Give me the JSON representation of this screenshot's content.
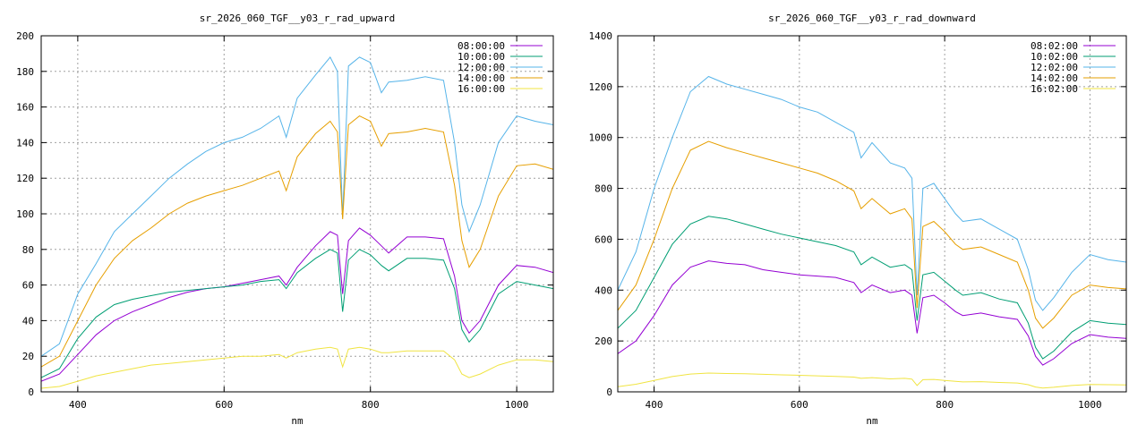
{
  "chart_data": [
    {
      "type": "line",
      "title": "sr_2026_060_TGF__y03_r_rad_upward",
      "xlabel": "nm",
      "ylabel": "",
      "xlim": [
        350,
        1050
      ],
      "ylim": [
        0,
        200
      ],
      "xticks": [
        400,
        600,
        800,
        1000
      ],
      "yticks": [
        0,
        20,
        40,
        60,
        80,
        100,
        120,
        140,
        160,
        180,
        200
      ],
      "grid": true,
      "legend": "top-right",
      "x": [
        350,
        375,
        400,
        425,
        450,
        475,
        500,
        525,
        550,
        575,
        600,
        625,
        650,
        675,
        685,
        700,
        725,
        745,
        755,
        762,
        770,
        785,
        800,
        815,
        825,
        850,
        875,
        900,
        915,
        925,
        935,
        950,
        975,
        1000,
        1025,
        1050
      ],
      "series": [
        {
          "name": "08:00:00",
          "color": "#9400d3",
          "values": [
            6,
            10,
            21,
            32,
            40,
            45,
            49,
            53,
            56,
            58,
            59,
            61,
            63,
            65,
            60,
            70,
            82,
            90,
            88,
            55,
            85,
            92,
            88,
            82,
            78,
            87,
            87,
            86,
            65,
            40,
            33,
            40,
            60,
            71,
            70,
            67
          ]
        },
        {
          "name": "10:00:00",
          "color": "#009e73",
          "values": [
            8,
            13,
            30,
            42,
            49,
            52,
            54,
            56,
            57,
            58,
            59,
            60,
            62,
            63,
            58,
            67,
            75,
            80,
            78,
            45,
            74,
            80,
            77,
            71,
            68,
            75,
            75,
            74,
            58,
            35,
            28,
            35,
            55,
            62,
            60,
            58
          ]
        },
        {
          "name": "12:00:00",
          "color": "#56b4e9",
          "values": [
            20,
            27,
            55,
            72,
            90,
            100,
            110,
            120,
            128,
            135,
            140,
            143,
            148,
            155,
            143,
            165,
            178,
            188,
            180,
            98,
            183,
            188,
            185,
            168,
            174,
            175,
            177,
            175,
            140,
            105,
            90,
            105,
            140,
            155,
            152,
            150
          ]
        },
        {
          "name": "14:00:00",
          "color": "#e69f00",
          "values": [
            14,
            20,
            40,
            60,
            75,
            85,
            92,
            100,
            106,
            110,
            113,
            116,
            120,
            124,
            113,
            132,
            145,
            152,
            146,
            97,
            150,
            155,
            152,
            138,
            145,
            146,
            148,
            146,
            116,
            85,
            70,
            80,
            110,
            127,
            128,
            125
          ]
        },
        {
          "name": "16:00:00",
          "color": "#f0e442",
          "values": [
            2,
            3,
            6,
            9,
            11,
            13,
            15,
            16,
            17,
            18,
            19,
            20,
            20,
            21,
            19,
            22,
            24,
            25,
            24,
            14,
            24,
            25,
            24,
            22,
            22,
            23,
            23,
            23,
            18,
            10,
            8,
            10,
            15,
            18,
            18,
            17
          ]
        }
      ]
    },
    {
      "type": "line",
      "title": "sr_2026_060_TGF__y03_r_rad_downward",
      "xlabel": "nm",
      "ylabel": "",
      "xlim": [
        350,
        1050
      ],
      "ylim": [
        0,
        1400
      ],
      "xticks": [
        400,
        600,
        800,
        1000
      ],
      "yticks": [
        0,
        200,
        400,
        600,
        800,
        1000,
        1200,
        1400
      ],
      "grid": true,
      "legend": "top-right",
      "x": [
        350,
        375,
        400,
        425,
        450,
        475,
        500,
        525,
        550,
        575,
        600,
        625,
        650,
        675,
        685,
        700,
        725,
        745,
        755,
        762,
        770,
        785,
        800,
        815,
        825,
        850,
        875,
        900,
        915,
        925,
        935,
        950,
        975,
        1000,
        1025,
        1050
      ],
      "series": [
        {
          "name": "08:02:00",
          "color": "#9400d3",
          "values": [
            150,
            200,
            300,
            420,
            490,
            515,
            505,
            500,
            480,
            470,
            460,
            455,
            450,
            430,
            390,
            420,
            390,
            400,
            380,
            230,
            370,
            380,
            350,
            315,
            300,
            310,
            295,
            285,
            220,
            140,
            105,
            130,
            190,
            225,
            215,
            210
          ]
        },
        {
          "name": "10:02:00",
          "color": "#009e73",
          "values": [
            250,
            320,
            450,
            580,
            660,
            690,
            680,
            660,
            640,
            620,
            605,
            590,
            575,
            550,
            500,
            530,
            490,
            500,
            480,
            280,
            460,
            470,
            435,
            400,
            380,
            390,
            365,
            350,
            270,
            175,
            130,
            160,
            235,
            280,
            270,
            265
          ]
        },
        {
          "name": "12:02:00",
          "color": "#56b4e9",
          "values": [
            400,
            550,
            800,
            1000,
            1180,
            1240,
            1210,
            1190,
            1170,
            1150,
            1120,
            1100,
            1060,
            1020,
            920,
            980,
            900,
            880,
            840,
            380,
            800,
            820,
            760,
            700,
            670,
            680,
            640,
            600,
            480,
            360,
            320,
            370,
            470,
            540,
            520,
            510
          ]
        },
        {
          "name": "14:02:00",
          "color": "#e69f00",
          "values": [
            320,
            420,
            600,
            800,
            950,
            985,
            960,
            940,
            920,
            900,
            880,
            860,
            830,
            790,
            720,
            760,
            700,
            720,
            680,
            330,
            650,
            670,
            630,
            580,
            560,
            570,
            540,
            510,
            400,
            290,
            250,
            290,
            380,
            420,
            410,
            405
          ]
        },
        {
          "name": "16:02:00",
          "color": "#f0e442",
          "values": [
            20,
            30,
            45,
            60,
            70,
            74,
            72,
            71,
            69,
            67,
            65,
            63,
            61,
            58,
            53,
            56,
            51,
            53,
            50,
            25,
            48,
            49,
            45,
            41,
            39,
            40,
            37,
            35,
            28,
            19,
            15,
            18,
            25,
            29,
            28,
            27
          ]
        }
      ]
    }
  ]
}
